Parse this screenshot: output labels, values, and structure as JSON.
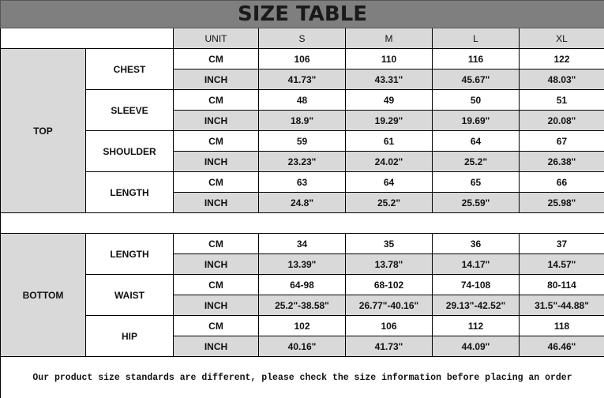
{
  "title": "SIZE TABLE",
  "header": {
    "unit": "UNIT",
    "sizes": [
      "S",
      "M",
      "L",
      "XL"
    ]
  },
  "sections": [
    {
      "label": "TOP",
      "measures": [
        {
          "label": "CHEST",
          "rows": [
            {
              "unit": "CM",
              "values": [
                "106",
                "110",
                "116",
                "122"
              ]
            },
            {
              "unit": "INCH",
              "values": [
                "41.73\"",
                "43.31\"",
                "45.67\"",
                "48.03\""
              ]
            }
          ]
        },
        {
          "label": "SLEEVE",
          "rows": [
            {
              "unit": "CM",
              "values": [
                "48",
                "49",
                "50",
                "51"
              ]
            },
            {
              "unit": "INCH",
              "values": [
                "18.9\"",
                "19.29\"",
                "19.69\"",
                "20.08\""
              ]
            }
          ]
        },
        {
          "label": "SHOULDER",
          "rows": [
            {
              "unit": "CM",
              "values": [
                "59",
                "61",
                "64",
                "67"
              ]
            },
            {
              "unit": "INCH",
              "values": [
                "23.23\"",
                "24.02\"",
                "25.2\"",
                "26.38\""
              ]
            }
          ]
        },
        {
          "label": "LENGTH",
          "rows": [
            {
              "unit": "CM",
              "values": [
                "63",
                "64",
                "65",
                "66"
              ]
            },
            {
              "unit": "INCH",
              "values": [
                "24.8\"",
                "25.2\"",
                "25.59\"",
                "25.98\""
              ]
            }
          ]
        }
      ]
    },
    {
      "label": "BOTTOM",
      "measures": [
        {
          "label": "LENGTH",
          "rows": [
            {
              "unit": "CM",
              "values": [
                "34",
                "35",
                "36",
                "37"
              ]
            },
            {
              "unit": "INCH",
              "values": [
                "13.39\"",
                "13.78\"",
                "14.17\"",
                "14.57\""
              ]
            }
          ]
        },
        {
          "label": "WAIST",
          "rows": [
            {
              "unit": "CM",
              "values": [
                "64-98",
                "68-102",
                "74-108",
                "80-114"
              ]
            },
            {
              "unit": "INCH",
              "values": [
                "25.2\"-38.58\"",
                "26.77\"-40.16\"",
                "29.13\"-42.52\"",
                "31.5\"-44.88\""
              ]
            }
          ]
        },
        {
          "label": "HIP",
          "rows": [
            {
              "unit": "CM",
              "values": [
                "102",
                "106",
                "112",
                "118"
              ]
            },
            {
              "unit": "INCH",
              "values": [
                "40.16\"",
                "41.73\"",
                "44.09\"",
                "46.46\""
              ]
            }
          ]
        }
      ]
    }
  ],
  "footer": "Our product size standards are different, please check the size information before placing an order",
  "colors": {
    "title_bg": "#7f7f7f",
    "shade": "#d9d9d9"
  }
}
